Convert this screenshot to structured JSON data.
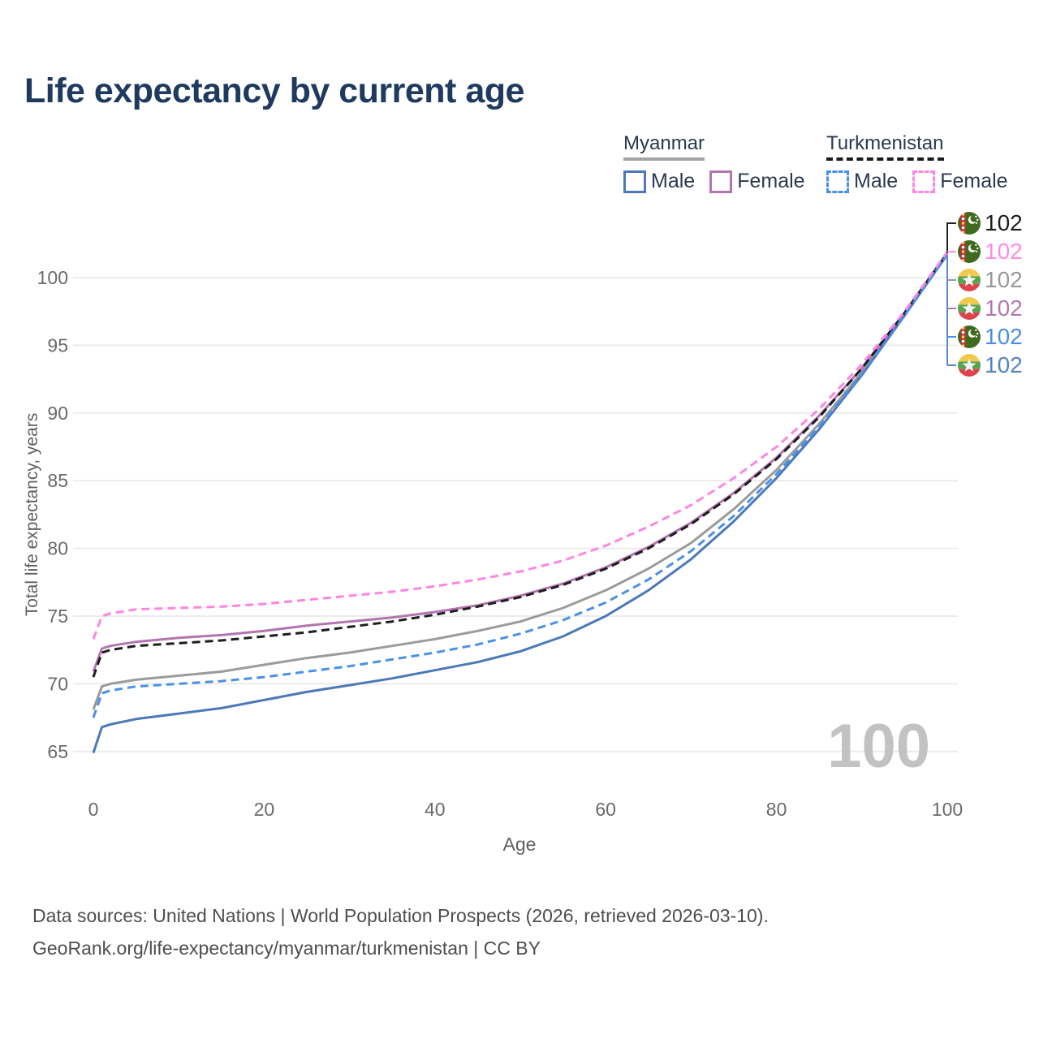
{
  "title": "Life expectancy by current age",
  "legend": {
    "groups": [
      {
        "country": "Myanmar",
        "underline_style": "solid",
        "underline_color": "#a3a3a3",
        "items": [
          {
            "label": "Male",
            "color": "#4b79b8",
            "dashed": false
          },
          {
            "label": "Female",
            "color": "#b275af",
            "dashed": false
          }
        ]
      },
      {
        "country": "Turkmenistan",
        "underline_style": "dashed",
        "underline_color": "#1a1a1a",
        "items": [
          {
            "label": "Male",
            "color": "#4a90e8",
            "dashed": true
          },
          {
            "label": "Female",
            "color": "#ff85e2",
            "dashed": true
          }
        ]
      }
    ]
  },
  "watermark": "100",
  "footer": {
    "line1": "Data sources: United Nations | World Population Prospects (2026, retrieved 2026-03-10).",
    "line2": "GeoRank.org/life-expectancy/myanmar/turkmenistan | CC BY"
  },
  "chart_data": {
    "type": "line",
    "title": "Life expectancy by current age",
    "xlabel": "Age",
    "ylabel": "Total life expectancy, years",
    "xlim": [
      0,
      100
    ],
    "ylim": [
      63,
      103
    ],
    "x_ticks": [
      0,
      20,
      40,
      60,
      80,
      100
    ],
    "y_ticks": [
      65,
      70,
      75,
      80,
      85,
      90,
      95,
      100
    ],
    "grid": "horizontal-only",
    "legend_position": "top-right",
    "x": [
      0,
      1,
      2,
      5,
      10,
      15,
      20,
      25,
      30,
      35,
      40,
      45,
      50,
      55,
      60,
      65,
      70,
      75,
      80,
      85,
      90,
      95,
      100
    ],
    "series": [
      {
        "country": "Myanmar",
        "sex": "male",
        "line": "solid",
        "color": "#4b79b8",
        "flag": "myanmar",
        "end_label": "102",
        "label_color": "#5583c0",
        "label_row": 5,
        "values": [
          64.9,
          66.8,
          67.0,
          67.4,
          67.8,
          68.2,
          68.8,
          69.4,
          69.9,
          70.4,
          71.0,
          71.6,
          72.4,
          73.5,
          75.0,
          76.9,
          79.2,
          82.0,
          85.2,
          88.8,
          92.8,
          97.2,
          101.7
        ]
      },
      {
        "country": "Myanmar",
        "sex": "both",
        "line": "solid",
        "color": "#9b9b9b",
        "flag": "myanmar",
        "end_label": "102",
        "label_color": "#999999",
        "label_row": 2,
        "values": [
          68.1,
          69.8,
          70.0,
          70.3,
          70.6,
          70.9,
          71.4,
          71.9,
          72.3,
          72.8,
          73.3,
          73.9,
          74.6,
          75.6,
          76.9,
          78.5,
          80.4,
          82.9,
          85.8,
          89.2,
          93.0,
          97.3,
          101.7
        ]
      },
      {
        "country": "Myanmar",
        "sex": "female",
        "line": "solid",
        "color": "#b275af",
        "flag": "myanmar",
        "end_label": "102",
        "label_color": "#b279ae",
        "label_row": 3,
        "values": [
          70.9,
          72.6,
          72.8,
          73.1,
          73.4,
          73.6,
          73.9,
          74.3,
          74.6,
          74.9,
          75.3,
          75.8,
          76.5,
          77.4,
          78.6,
          80.1,
          81.9,
          84.1,
          86.7,
          89.8,
          93.3,
          97.4,
          101.8
        ]
      },
      {
        "country": "Turkmenistan",
        "sex": "both",
        "line": "dashed",
        "color": "#1d1d1d",
        "flag": "turkmenistan",
        "end_label": "102",
        "label_color": "#1d1d1d",
        "label_row": 0,
        "values": [
          70.5,
          72.3,
          72.5,
          72.8,
          73.0,
          73.2,
          73.5,
          73.8,
          74.2,
          74.6,
          75.1,
          75.7,
          76.4,
          77.3,
          78.5,
          80.0,
          81.8,
          84.0,
          86.6,
          89.7,
          93.3,
          97.4,
          101.8
        ]
      },
      {
        "country": "Turkmenistan",
        "sex": "male",
        "line": "dashed",
        "color": "#4a90e8",
        "flag": "turkmenistan",
        "end_label": "102",
        "label_color": "#4a8fe3",
        "label_row": 4,
        "values": [
          67.5,
          69.3,
          69.5,
          69.8,
          70.0,
          70.2,
          70.5,
          70.9,
          71.3,
          71.8,
          72.3,
          72.9,
          73.7,
          74.7,
          76.0,
          77.7,
          79.8,
          82.4,
          85.5,
          89.0,
          92.9,
          97.2,
          101.7
        ]
      },
      {
        "country": "Turkmenistan",
        "sex": "female",
        "line": "dashed",
        "color": "#ff85e2",
        "flag": "turkmenistan",
        "end_label": "102",
        "label_color": "#ff8ce1",
        "label_row": 1,
        "values": [
          73.3,
          75.0,
          75.2,
          75.5,
          75.6,
          75.7,
          75.9,
          76.2,
          76.5,
          76.8,
          77.2,
          77.7,
          78.3,
          79.1,
          80.2,
          81.6,
          83.2,
          85.2,
          87.5,
          90.3,
          93.6,
          97.5,
          101.9
        ]
      }
    ]
  },
  "colors": {
    "title": "#1e3a5f",
    "axis_text": "#6a6a6a",
    "axis_title": "#5f5f5f",
    "gridline": "#ececec",
    "watermark": "#c2c2c2",
    "footer_text": "#4e4e4e"
  }
}
